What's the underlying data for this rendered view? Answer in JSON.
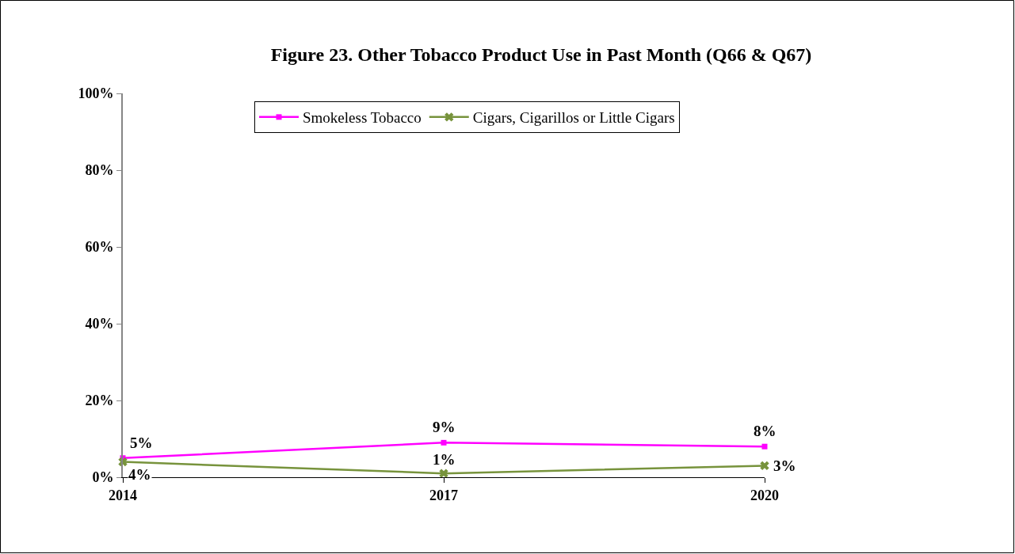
{
  "chart_data": {
    "type": "line",
    "title": "Figure 23. Other Tobacco Product Use in Past Month (Q66 & Q67)",
    "categories": [
      "2014",
      "2017",
      "2020"
    ],
    "series": [
      {
        "name": "Smokeless Tobacco",
        "color": "#ff00ff",
        "values": [
          5,
          9,
          8
        ],
        "value_labels": [
          "5%",
          "9%",
          "8%"
        ],
        "marker": "square"
      },
      {
        "name": "Cigars, Cigarillos or Little Cigars",
        "color": "#77933c",
        "values": [
          4,
          1,
          3
        ],
        "value_labels": [
          "4%",
          "1%",
          "3%"
        ],
        "marker": "cross"
      }
    ],
    "ylim": [
      0,
      100
    ],
    "yticks": [
      {
        "value": 0,
        "label": "0%"
      },
      {
        "value": 20,
        "label": "20%"
      },
      {
        "value": 40,
        "label": "40%"
      },
      {
        "value": 60,
        "label": "60%"
      },
      {
        "value": 80,
        "label": "80%"
      },
      {
        "value": 100,
        "label": "100%"
      }
    ],
    "grid": false,
    "legend": "top",
    "line_style": "solid"
  }
}
